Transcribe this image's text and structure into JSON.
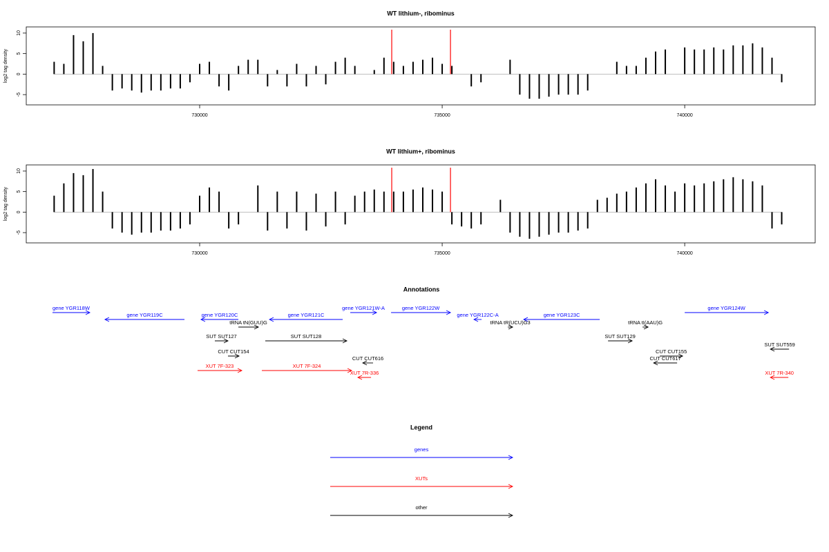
{
  "chart_data": [
    {
      "type": "bar",
      "title": "WT lithium-, ribominus",
      "ylabel": "log2 tag density",
      "color": "#000000",
      "x": [
        727000,
        727200,
        727400,
        727600,
        727800,
        728000,
        728200,
        728400,
        728600,
        728800,
        729000,
        729200,
        729400,
        729600,
        729800,
        730000,
        730200,
        730400,
        730600,
        730800,
        731000,
        731200,
        731400,
        731600,
        731800,
        732000,
        732200,
        732400,
        732600,
        732800,
        733000,
        733200,
        733400,
        733600,
        733800,
        734000,
        734200,
        734400,
        734600,
        734800,
        735000,
        735200,
        735400,
        735600,
        735800,
        736000,
        736200,
        736400,
        736600,
        736800,
        737000,
        737200,
        737400,
        737600,
        737800,
        738000,
        738200,
        738400,
        738600,
        738800,
        739000,
        739200,
        739400,
        739600,
        739800,
        740000,
        740200,
        740400,
        740600,
        740800,
        741000,
        741200,
        741400,
        741600,
        741800,
        742000
      ],
      "values": [
        3,
        2.5,
        9.5,
        8,
        10,
        2,
        -4,
        -3.5,
        -4,
        -4.5,
        -4,
        -4,
        -3.5,
        -3.5,
        -2,
        2.5,
        3,
        -3,
        -4,
        2,
        3.5,
        3.5,
        -3,
        1,
        -3,
        2.5,
        -3,
        2,
        -2.5,
        3,
        4,
        2,
        0,
        1,
        4,
        3,
        2,
        3,
        3.5,
        4,
        2.5,
        2,
        0,
        -3,
        -2,
        0,
        0,
        3.5,
        -5,
        -6,
        -6,
        -5.5,
        -5,
        -5,
        -5,
        -4,
        0,
        0,
        3,
        2,
        2,
        4,
        5.5,
        6,
        0,
        6.5,
        6,
        6,
        6.5,
        6,
        7,
        7,
        7.5,
        6.5,
        4,
        -2
      ],
      "highlights": [
        733960,
        735171
      ],
      "highlight_color": "#ff0000",
      "xlim": [
        726425,
        742690
      ],
      "ylim": [
        -7.5,
        11.5
      ],
      "xticks": [
        730000,
        735000,
        740000
      ],
      "yticks": [
        -5,
        0,
        5,
        10
      ]
    },
    {
      "type": "bar",
      "title": "WT lithium+, ribominus",
      "ylabel": "log2 tag density",
      "color": "#000000",
      "x": [
        727000,
        727200,
        727400,
        727600,
        727800,
        728000,
        728200,
        728400,
        728600,
        728800,
        729000,
        729200,
        729400,
        729600,
        729800,
        730000,
        730200,
        730400,
        730600,
        730800,
        731000,
        731200,
        731400,
        731600,
        731800,
        732000,
        732200,
        732400,
        732600,
        732800,
        733000,
        733200,
        733400,
        733600,
        733800,
        734000,
        734200,
        734400,
        734600,
        734800,
        735000,
        735200,
        735400,
        735600,
        735800,
        736000,
        736200,
        736400,
        736600,
        736800,
        737000,
        737200,
        737400,
        737600,
        737800,
        738000,
        738200,
        738400,
        738600,
        738800,
        739000,
        739200,
        739400,
        739600,
        739800,
        740000,
        740200,
        740400,
        740600,
        740800,
        741000,
        741200,
        741400,
        741600,
        741800,
        742000
      ],
      "values": [
        4,
        7,
        9.5,
        9,
        10.5,
        5,
        -4,
        -5,
        -5.5,
        -5,
        -5,
        -4.5,
        -4.5,
        -4,
        -3,
        4,
        6,
        5,
        -4,
        -3,
        0,
        6.5,
        -4.5,
        5,
        -4,
        5,
        -4.5,
        4.5,
        -3.5,
        5,
        -3,
        4,
        5,
        5.5,
        5,
        5,
        5,
        5.5,
        6,
        5.5,
        5,
        -3,
        -3.5,
        -4,
        -3,
        0,
        3,
        -5,
        -6,
        -6.5,
        -6,
        -5.5,
        -5,
        -5,
        -4.5,
        -4,
        3,
        3.5,
        4.5,
        5,
        6,
        7,
        8,
        6.5,
        5,
        7,
        6.5,
        7,
        7.5,
        8,
        8.5,
        8,
        7.5,
        6.5,
        -4,
        -3
      ],
      "highlights": [
        733960,
        735171
      ],
      "highlight_color": "#ff0000",
      "xlim": [
        726425,
        742690
      ],
      "ylim": [
        -7.5,
        11.5
      ],
      "xticks": [
        730000,
        735000,
        740000
      ],
      "yticks": [
        -5,
        0,
        5,
        10
      ]
    },
    {
      "type": "annotations",
      "title": "Annotations",
      "xlim": [
        726425,
        742690
      ],
      "features": [
        {
          "label": "gene YGR118W",
          "start": 726966,
          "end": 727735,
          "strand": "+",
          "color": "#0000ff"
        },
        {
          "label": "gene YGR119C",
          "start": 728048,
          "end": 729687,
          "strand": "-",
          "color": "#0000ff"
        },
        {
          "label": "gene YGR120C",
          "start": 730028,
          "end": 730798,
          "strand": "-",
          "color": "#0000ff"
        },
        {
          "label": "gene YGR121C",
          "start": 731439,
          "end": 732949,
          "strand": "-",
          "color": "#0000ff"
        },
        {
          "label": "gene YGR121W-A",
          "start": 733105,
          "end": 733647,
          "strand": "+",
          "color": "#0000ff"
        },
        {
          "label": "gene YGR122W",
          "start": 733946,
          "end": 735171,
          "strand": "+",
          "color": "#0000ff"
        },
        {
          "label": "gene YGR122C-A",
          "start": 735655,
          "end": 735812,
          "strand": "-",
          "color": "#0000ff"
        },
        {
          "label": "gene YGR123C",
          "start": 736681,
          "end": 738248,
          "strand": "-",
          "color": "#0000ff"
        },
        {
          "label": "gene YGR124W",
          "start": 740000,
          "end": 741724,
          "strand": "+",
          "color": "#0000ff"
        },
        {
          "label": "tRNA tN(GUU)G",
          "start": 730798,
          "end": 731211,
          "strand": "+",
          "color": "#000000"
        },
        {
          "label": "tRNA tR(UCU)G3",
          "start": 736353,
          "end": 736453,
          "strand": "+",
          "color": "#000000"
        },
        {
          "label": "tRNA tI(AAU)G",
          "start": 739131,
          "end": 739245,
          "strand": "+",
          "color": "#000000"
        },
        {
          "label": "SUT SUT127",
          "start": 730313,
          "end": 730584,
          "strand": "+",
          "color": "#000000"
        },
        {
          "label": "SUT SUT128",
          "start": 731353,
          "end": 733034,
          "strand": "+",
          "color": "#000000"
        },
        {
          "label": "SUT SUT129",
          "start": 738419,
          "end": 738917,
          "strand": "+",
          "color": "#000000"
        },
        {
          "label": "SUT SUT559",
          "start": 741766,
          "end": 742151,
          "strand": "-",
          "color": "#000000"
        },
        {
          "label": "CUT CUT154",
          "start": 730584,
          "end": 730812,
          "strand": "+",
          "color": "#000000"
        },
        {
          "label": "CUT CUT155",
          "start": 739487,
          "end": 739957,
          "strand": "+",
          "color": "#000000"
        },
        {
          "label": "CUT CUT616",
          "start": 733362,
          "end": 733575,
          "strand": "-",
          "color": "#000000"
        },
        {
          "label": "CUT CUT617",
          "start": 739359,
          "end": 739843,
          "strand": "-",
          "color": "#000000"
        },
        {
          "label": "XUT 7F-323",
          "start": 729957,
          "end": 730869,
          "strand": "+",
          "color": "#ff0000"
        },
        {
          "label": "XUT 7F-324",
          "start": 731282,
          "end": 733134,
          "strand": "+",
          "color": "#ff0000"
        },
        {
          "label": "XUT 7R-336",
          "start": 733262,
          "end": 733533,
          "strand": "-",
          "color": "#ff0000"
        },
        {
          "label": "XUT 7R-340",
          "start": 741766,
          "end": 742137,
          "strand": "-",
          "color": "#ff0000"
        }
      ]
    },
    {
      "type": "legend",
      "title": "Legend",
      "series": [
        {
          "name": "genes",
          "color": "#0000ff"
        },
        {
          "name": "XUTs",
          "color": "#ff0000"
        },
        {
          "name": "other",
          "color": "#000000"
        }
      ]
    }
  ]
}
